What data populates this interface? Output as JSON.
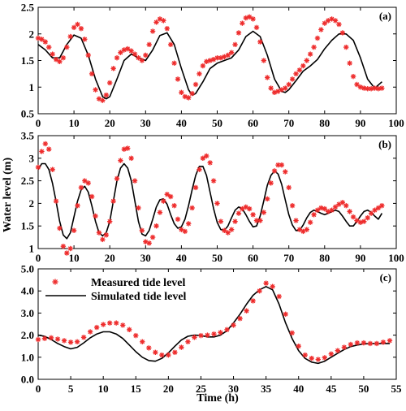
{
  "figure": {
    "ylabel": "Water level (m)",
    "xlabel": "Time (h)"
  },
  "legend": {
    "measured": "Measured tide level",
    "simulated": "Simulated tide level"
  },
  "chart_data": [
    {
      "type": "line",
      "panel_label": "(a)",
      "xlim": [
        0,
        100
      ],
      "ylim": [
        0.5,
        2.5
      ],
      "xticks": [
        0,
        10,
        20,
        30,
        40,
        50,
        60,
        70,
        80,
        90,
        100
      ],
      "yticks": [
        0.5,
        1,
        1.5,
        2,
        2.5
      ],
      "ytick_labels": [
        "0.5",
        "1",
        "1.5",
        "2",
        "2.5"
      ],
      "grid": false,
      "series": [
        {
          "name": "Measured tide level",
          "x": [
            0,
            1,
            2,
            3,
            4,
            5,
            6,
            7,
            8,
            9,
            10,
            11,
            12,
            13,
            14,
            15,
            16,
            17,
            18,
            19,
            20,
            21,
            22,
            23,
            24,
            25,
            26,
            27,
            28,
            29,
            30,
            31,
            32,
            33,
            34,
            35,
            36,
            37,
            38,
            39,
            40,
            41,
            42,
            43,
            44,
            45,
            46,
            47,
            48,
            49,
            50,
            51,
            52,
            53,
            54,
            55,
            56,
            57,
            58,
            59,
            60,
            61,
            62,
            63,
            64,
            65,
            66,
            67,
            68,
            69,
            70,
            71,
            72,
            73,
            74,
            75,
            76,
            77,
            78,
            79,
            80,
            81,
            82,
            83,
            84,
            85,
            86,
            87,
            88,
            89,
            90,
            91,
            92,
            93,
            94,
            95,
            96
          ],
          "y": [
            1.92,
            1.9,
            1.85,
            1.75,
            1.62,
            1.52,
            1.48,
            1.55,
            1.75,
            1.95,
            2.12,
            2.18,
            2.1,
            1.9,
            1.6,
            1.25,
            0.95,
            0.78,
            0.75,
            0.85,
            1.08,
            1.35,
            1.55,
            1.65,
            1.7,
            1.72,
            1.68,
            1.62,
            1.55,
            1.5,
            1.6,
            1.8,
            2.05,
            2.22,
            2.28,
            2.25,
            2.1,
            1.8,
            1.45,
            1.15,
            0.9,
            0.82,
            0.8,
            0.88,
            1.05,
            1.25,
            1.4,
            1.48,
            1.5,
            1.52,
            1.55,
            1.55,
            1.57,
            1.6,
            1.65,
            1.8,
            2.02,
            2.2,
            2.3,
            2.32,
            2.28,
            2.12,
            1.85,
            1.5,
            1.18,
            0.98,
            0.9,
            0.92,
            0.95,
            0.98,
            1.05,
            1.15,
            1.25,
            1.32,
            1.4,
            1.5,
            1.62,
            1.75,
            1.92,
            2.08,
            2.2,
            2.25,
            2.28,
            2.25,
            2.18,
            2.02,
            1.75,
            1.45,
            1.2,
            1.05,
            1.0,
            0.98,
            0.97,
            0.97,
            0.98,
            0.97,
            0.98
          ]
        },
        {
          "name": "Simulated tide level",
          "x": [
            0,
            2,
            4,
            6,
            8,
            10,
            12,
            14,
            16,
            18,
            19,
            20,
            22,
            24,
            26,
            28,
            30,
            32,
            34,
            36,
            38,
            40,
            42,
            43,
            44,
            46,
            48,
            50,
            52,
            54,
            56,
            58,
            60,
            62,
            64,
            66,
            68,
            69,
            70,
            72,
            74,
            76,
            78,
            80,
            82,
            84,
            86,
            88,
            90,
            92,
            94,
            96
          ],
          "y": [
            1.8,
            1.7,
            1.55,
            1.55,
            1.8,
            1.98,
            1.92,
            1.6,
            1.15,
            0.82,
            0.78,
            0.82,
            1.15,
            1.5,
            1.62,
            1.55,
            1.5,
            1.7,
            1.97,
            2.02,
            1.8,
            1.35,
            0.95,
            0.85,
            0.88,
            1.1,
            1.35,
            1.45,
            1.5,
            1.55,
            1.7,
            1.95,
            2.05,
            1.95,
            1.6,
            1.15,
            0.92,
            0.9,
            0.95,
            1.12,
            1.3,
            1.4,
            1.52,
            1.72,
            1.88,
            2.0,
            2.0,
            1.88,
            1.55,
            1.15,
            0.98,
            1.1
          ]
        }
      ]
    },
    {
      "type": "line",
      "panel_label": "(b)",
      "xlim": [
        0,
        100
      ],
      "ylim": [
        1,
        3.5
      ],
      "xticks": [
        0,
        10,
        20,
        30,
        40,
        50,
        60,
        70,
        80,
        90,
        100
      ],
      "yticks": [
        1,
        1.5,
        2,
        2.5,
        3,
        3.5
      ],
      "ytick_labels": [
        "1",
        "1.5",
        "2",
        "2.5",
        "3",
        "3.5"
      ],
      "grid": false,
      "series": [
        {
          "name": "Measured tide level",
          "x": [
            0,
            1,
            2,
            3,
            4,
            5,
            6,
            7,
            8,
            9,
            10,
            11,
            12,
            13,
            14,
            15,
            16,
            17,
            18,
            19,
            20,
            21,
            22,
            23,
            24,
            25,
            26,
            27,
            28,
            29,
            30,
            31,
            32,
            33,
            34,
            35,
            36,
            37,
            38,
            39,
            40,
            41,
            42,
            43,
            44,
            45,
            46,
            47,
            48,
            49,
            50,
            51,
            52,
            53,
            54,
            55,
            56,
            57,
            58,
            59,
            60,
            61,
            62,
            63,
            64,
            65,
            66,
            67,
            68,
            69,
            70,
            71,
            72,
            73,
            74,
            75,
            76,
            77,
            78,
            79,
            80,
            81,
            82,
            83,
            84,
            85,
            86,
            87,
            88,
            89,
            90,
            91,
            92,
            93,
            94,
            95,
            96
          ],
          "y": [
            2.8,
            3.15,
            3.32,
            3.2,
            2.75,
            2.05,
            1.45,
            1.05,
            0.9,
            1.0,
            1.4,
            1.95,
            2.35,
            2.5,
            2.45,
            2.15,
            1.72,
            1.35,
            1.2,
            1.3,
            1.6,
            2.05,
            2.55,
            2.95,
            3.2,
            3.22,
            3.0,
            2.5,
            1.9,
            1.4,
            1.15,
            1.12,
            1.25,
            1.5,
            1.8,
            2.05,
            2.2,
            2.15,
            1.95,
            1.65,
            1.42,
            1.38,
            1.55,
            1.9,
            2.35,
            2.75,
            3.0,
            3.05,
            2.9,
            2.5,
            2.0,
            1.6,
            1.4,
            1.35,
            1.42,
            1.6,
            1.78,
            1.88,
            1.92,
            1.88,
            1.75,
            1.62,
            1.62,
            1.8,
            2.1,
            2.45,
            2.72,
            2.85,
            2.85,
            2.7,
            2.35,
            1.95,
            1.62,
            1.42,
            1.38,
            1.42,
            1.58,
            1.75,
            1.85,
            1.9,
            1.88,
            1.82,
            1.85,
            1.92,
            1.98,
            2.02,
            1.95,
            1.82,
            1.7,
            1.62,
            1.58,
            1.6,
            1.68,
            1.78,
            1.85,
            1.9,
            1.95
          ]
        },
        {
          "name": "Simulated tide level",
          "x": [
            0,
            1,
            2,
            3,
            4,
            5,
            6,
            7,
            8,
            9,
            10,
            11,
            12,
            13,
            14,
            15,
            16,
            17,
            18,
            19,
            20,
            21,
            22,
            23,
            24,
            25,
            26,
            27,
            28,
            29,
            30,
            31,
            32,
            33,
            34,
            35,
            36,
            37,
            38,
            39,
            40,
            41,
            42,
            43,
            44,
            45,
            46,
            47,
            48,
            49,
            50,
            51,
            52,
            53,
            54,
            55,
            56,
            57,
            58,
            59,
            60,
            61,
            62,
            63,
            64,
            65,
            66,
            67,
            68,
            69,
            70,
            71,
            72,
            73,
            74,
            75,
            76,
            77,
            78,
            79,
            80,
            81,
            82,
            83,
            84,
            85,
            86,
            87,
            88,
            89,
            90,
            91,
            92,
            93,
            94,
            95,
            96
          ],
          "y": [
            2.75,
            2.88,
            2.88,
            2.75,
            2.45,
            2.05,
            1.6,
            1.3,
            1.22,
            1.35,
            1.7,
            2.05,
            2.3,
            2.38,
            2.25,
            1.95,
            1.6,
            1.35,
            1.28,
            1.35,
            1.6,
            2.05,
            2.5,
            2.78,
            2.88,
            2.78,
            2.5,
            2.05,
            1.6,
            1.32,
            1.28,
            1.4,
            1.65,
            1.92,
            2.08,
            2.1,
            1.98,
            1.75,
            1.55,
            1.45,
            1.48,
            1.65,
            1.95,
            2.3,
            2.62,
            2.82,
            2.82,
            2.62,
            2.25,
            1.88,
            1.58,
            1.42,
            1.4,
            1.5,
            1.68,
            1.85,
            1.92,
            1.88,
            1.75,
            1.6,
            1.48,
            1.5,
            1.72,
            2.05,
            2.4,
            2.62,
            2.72,
            2.65,
            2.42,
            2.08,
            1.75,
            1.52,
            1.4,
            1.4,
            1.52,
            1.68,
            1.8,
            1.85,
            1.82,
            1.78,
            1.75,
            1.78,
            1.82,
            1.85,
            1.82,
            1.72,
            1.6,
            1.5,
            1.5,
            1.6,
            1.72,
            1.82,
            1.85,
            1.8,
            1.72,
            1.65,
            1.78
          ]
        }
      ]
    },
    {
      "type": "line",
      "panel_label": "(c)",
      "xlim": [
        0,
        55
      ],
      "ylim": [
        0,
        5
      ],
      "xticks": [
        0,
        5,
        10,
        15,
        20,
        25,
        30,
        35,
        40,
        45,
        50,
        55
      ],
      "yticks": [
        0,
        1,
        2,
        3,
        4,
        5
      ],
      "ytick_labels": [
        "0.0",
        "1.0",
        "2.0",
        "3.0",
        "4.0",
        "5.0"
      ],
      "xlabel": "Time (h)",
      "legend_position": "top-left",
      "grid": false,
      "series": [
        {
          "name": "Measured tide level",
          "x": [
            0,
            1,
            2,
            3,
            4,
            5,
            6,
            7,
            8,
            9,
            10,
            11,
            12,
            13,
            14,
            15,
            16,
            17,
            18,
            19,
            20,
            21,
            22,
            23,
            24,
            25,
            26,
            27,
            28,
            29,
            30,
            31,
            32,
            33,
            34,
            35,
            36,
            37,
            38,
            39,
            40,
            41,
            42,
            43,
            44,
            45,
            46,
            47,
            48,
            49,
            50,
            51,
            52,
            53,
            54
          ],
          "y": [
            1.8,
            1.85,
            1.88,
            1.82,
            1.75,
            1.68,
            1.7,
            1.9,
            2.15,
            2.35,
            2.48,
            2.55,
            2.55,
            2.45,
            2.25,
            1.98,
            1.7,
            1.42,
            1.22,
            1.1,
            1.1,
            1.22,
            1.45,
            1.7,
            1.9,
            1.98,
            2.0,
            2.05,
            2.12,
            2.25,
            2.45,
            2.75,
            3.1,
            3.55,
            4.0,
            4.35,
            4.2,
            3.75,
            2.95,
            2.1,
            1.5,
            1.1,
            0.95,
            0.9,
            0.98,
            1.15,
            1.3,
            1.45,
            1.58,
            1.65,
            1.65,
            1.62,
            1.62,
            1.68,
            1.75
          ]
        },
        {
          "name": "Simulated tide level",
          "x": [
            0,
            1,
            2,
            3,
            4,
            5,
            6,
            7,
            8,
            9,
            10,
            11,
            12,
            13,
            14,
            15,
            16,
            17,
            18,
            19,
            20,
            21,
            22,
            23,
            24,
            25,
            26,
            27,
            28,
            29,
            30,
            31,
            32,
            33,
            34,
            35,
            36,
            37,
            38,
            39,
            40,
            41,
            42,
            43,
            44,
            45,
            46,
            47,
            48,
            49,
            50,
            51,
            52,
            53,
            54
          ],
          "y": [
            2.0,
            1.95,
            1.8,
            1.62,
            1.48,
            1.38,
            1.45,
            1.65,
            1.88,
            2.05,
            2.15,
            2.15,
            2.05,
            1.85,
            1.55,
            1.25,
            1.0,
            0.85,
            0.82,
            0.95,
            1.2,
            1.5,
            1.78,
            1.95,
            2.0,
            1.98,
            1.92,
            1.92,
            2.0,
            2.2,
            2.55,
            2.95,
            3.4,
            3.8,
            4.05,
            4.2,
            4.05,
            3.4,
            2.55,
            1.85,
            1.3,
            0.95,
            0.78,
            0.72,
            0.82,
            1.0,
            1.18,
            1.35,
            1.48,
            1.55,
            1.6,
            1.62,
            1.62,
            1.62,
            1.62
          ]
        }
      ]
    }
  ]
}
